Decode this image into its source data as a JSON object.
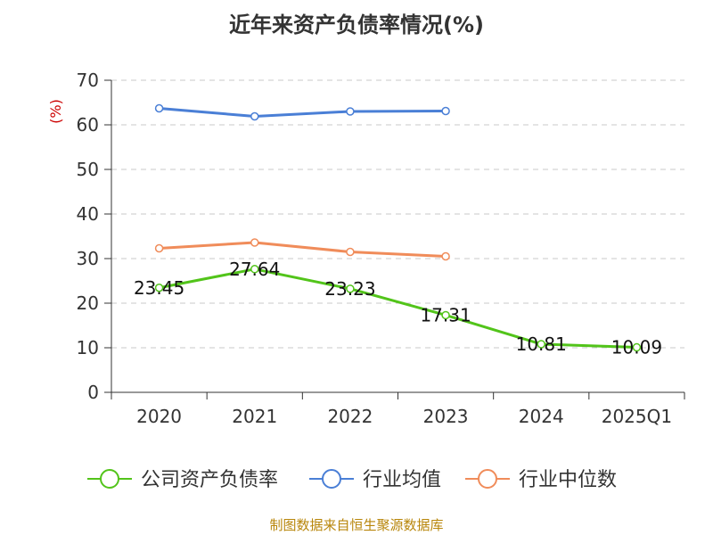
{
  "chart_data": {
    "type": "line",
    "title": "近年来资产负债率情况(%)",
    "ylabel": "(%)",
    "categories": [
      "2020",
      "2021",
      "2022",
      "2023",
      "2024",
      "2025Q1"
    ],
    "ylim": [
      0,
      70
    ],
    "yticks": [
      0,
      10,
      20,
      30,
      40,
      50,
      60,
      70
    ],
    "grid": true,
    "legend_position": "bottom",
    "series": [
      {
        "name": "公司资产负债率",
        "color": "#52c41a",
        "values": [
          23.45,
          27.64,
          23.23,
          17.31,
          10.81,
          10.09
        ],
        "labels": [
          "23.45",
          "27.64",
          "23.23",
          "17.31",
          "10.81",
          "10.09"
        ]
      },
      {
        "name": "行业均值",
        "color": "#4a7fd6",
        "values": [
          63.7,
          61.9,
          63.0,
          63.1,
          null,
          null
        ]
      },
      {
        "name": "行业中位数",
        "color": "#f08c5a",
        "values": [
          32.3,
          33.6,
          31.5,
          30.5,
          null,
          null
        ]
      }
    ]
  },
  "footer": "制图数据来自恒生聚源数据库"
}
